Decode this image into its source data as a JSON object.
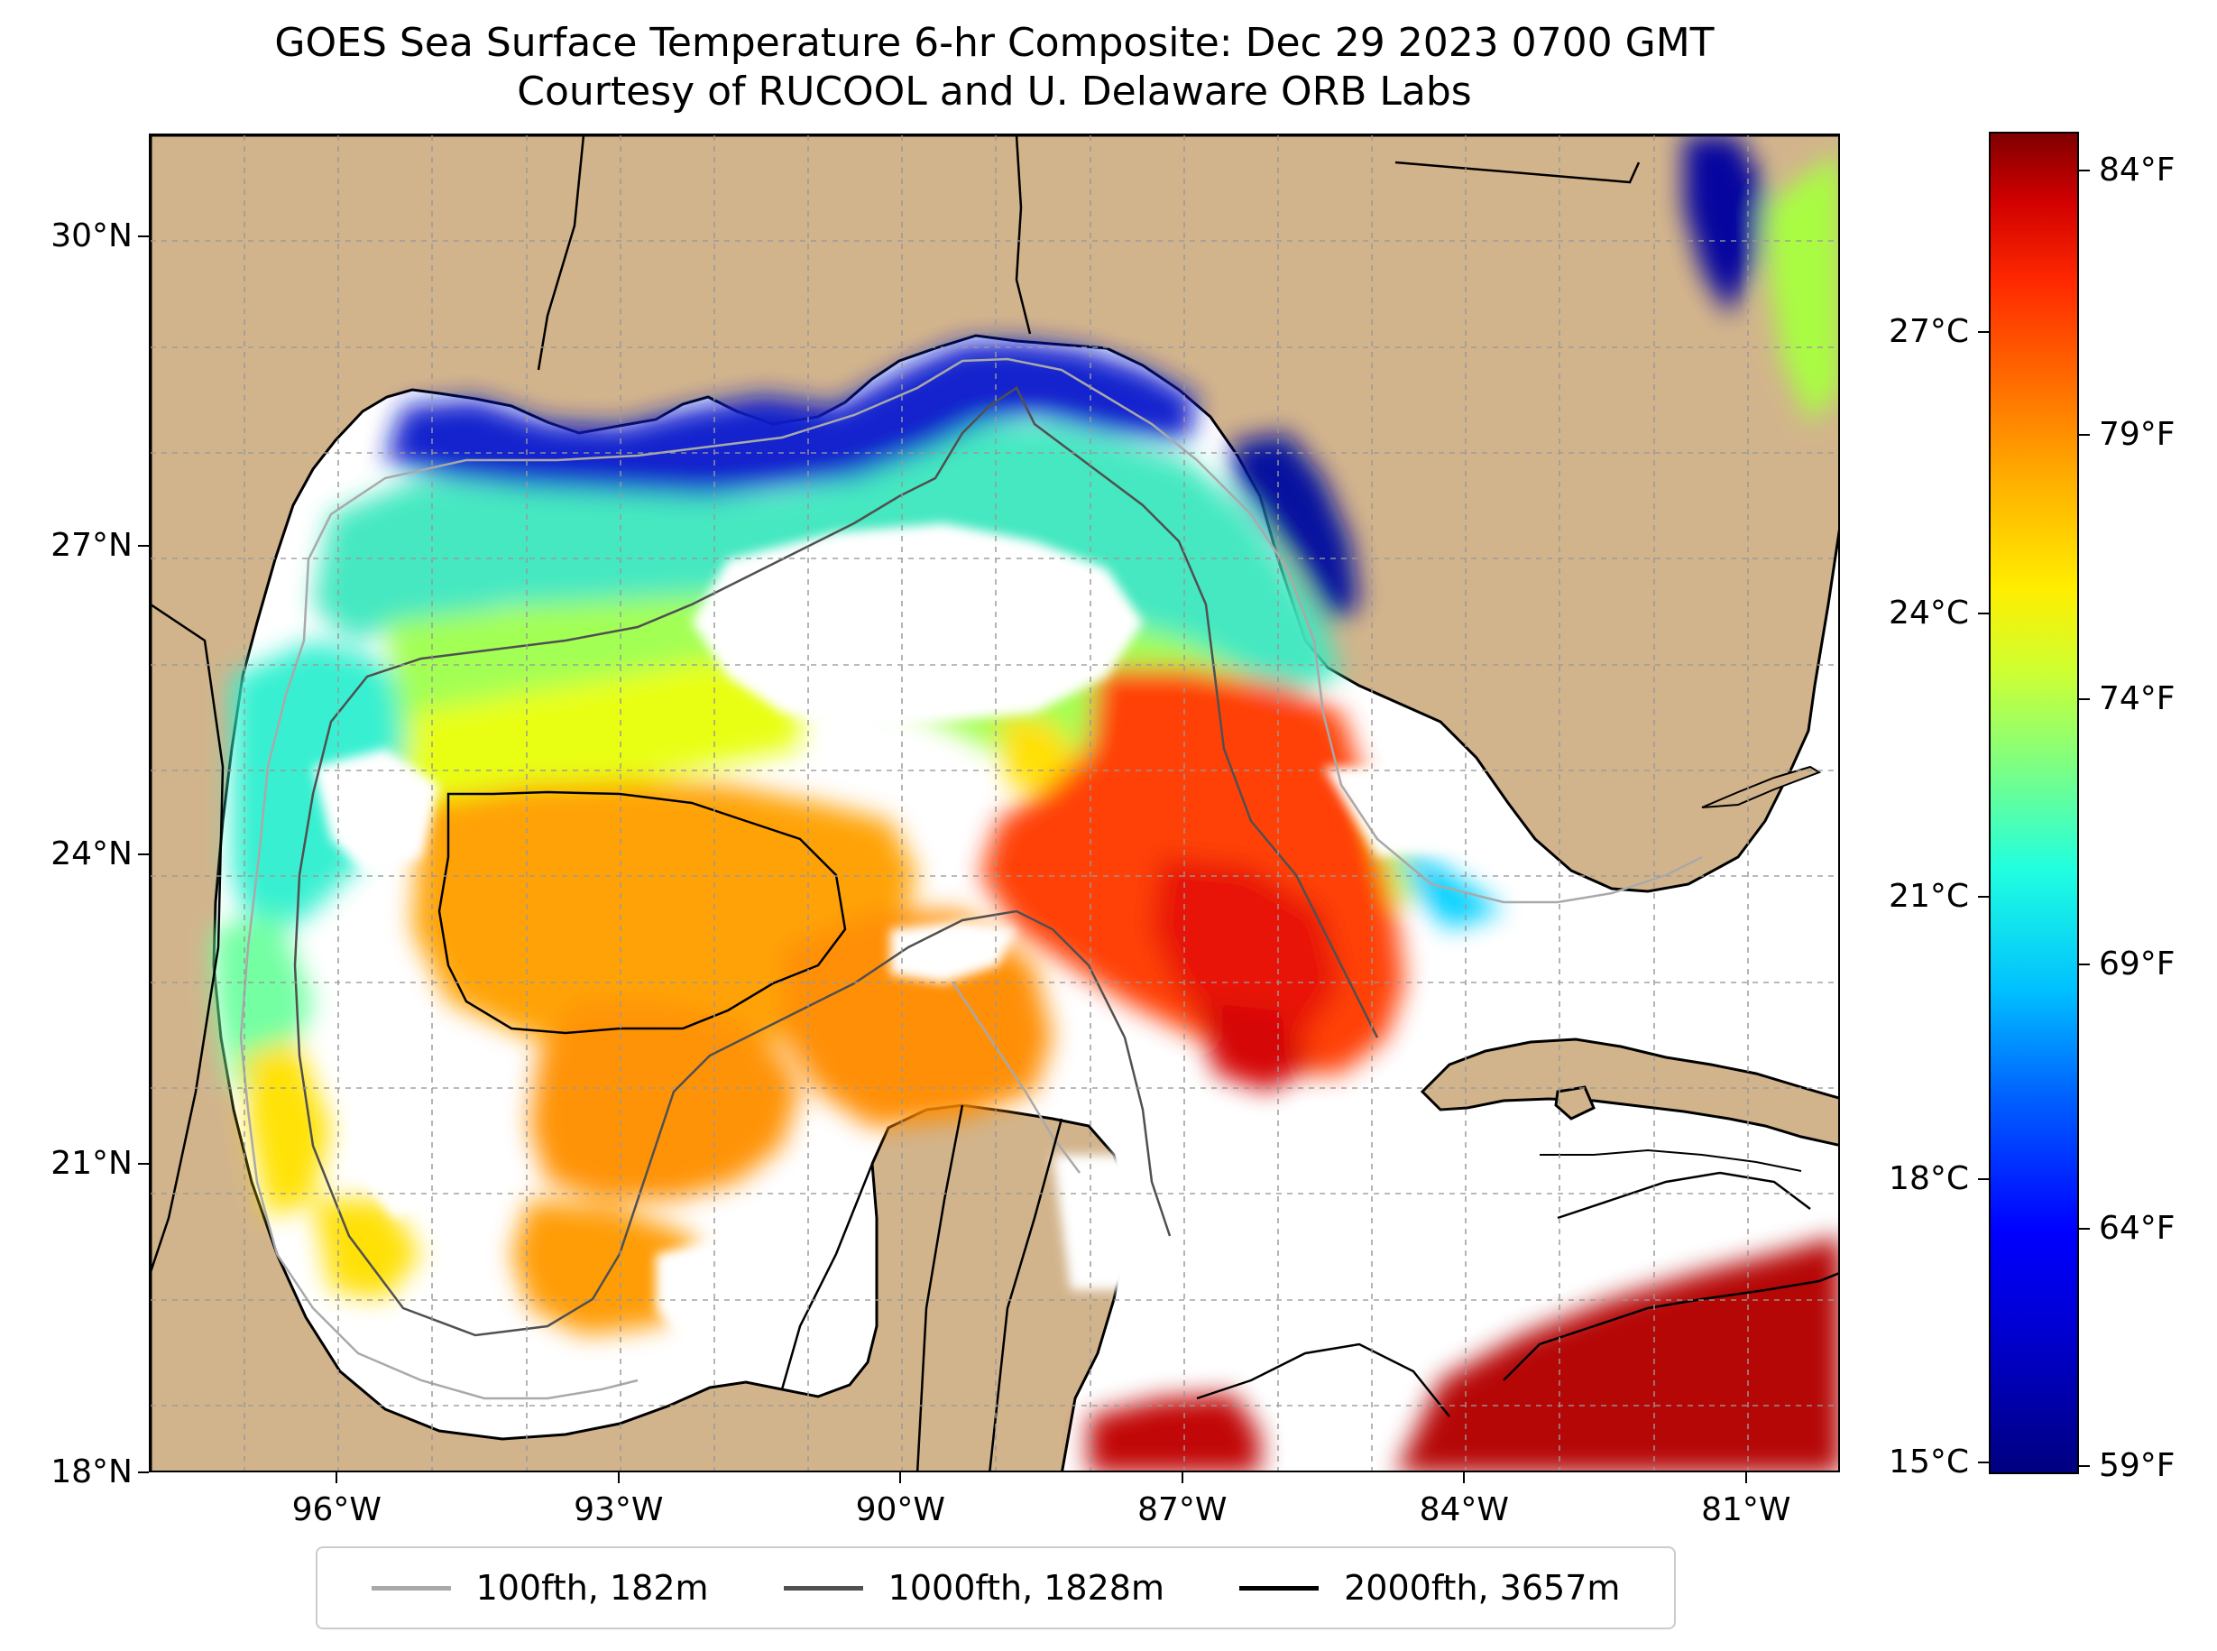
{
  "title": {
    "line1": "GOES Sea Surface Temperature 6-hr Composite: Dec 29 2023 0700 GMT",
    "line2": "Courtesy of RUCOOL and U. Delaware ORB Labs"
  },
  "map": {
    "lat_range": [
      18,
      31
    ],
    "lon_range": [
      -98,
      -80
    ],
    "lat_ticks": [
      {
        "value": 30,
        "label": "30°N"
      },
      {
        "value": 27,
        "label": "27°N"
      },
      {
        "value": 24,
        "label": "24°N"
      },
      {
        "value": 21,
        "label": "21°N"
      },
      {
        "value": 18,
        "label": "18°N"
      }
    ],
    "lon_ticks": [
      {
        "value": -96,
        "label": "96°W"
      },
      {
        "value": -93,
        "label": "93°W"
      },
      {
        "value": -90,
        "label": "90°W"
      },
      {
        "value": -87,
        "label": "87°W"
      },
      {
        "value": -84,
        "label": "84°W"
      },
      {
        "value": -81,
        "label": "81°W"
      }
    ],
    "grid": true,
    "land_color": "#d2b48c",
    "no_data_color": "#ffffff"
  },
  "legend": {
    "placement": "bottom-center",
    "items": [
      {
        "label": "100fth, 182m",
        "color": "#a9a9a9"
      },
      {
        "label": "1000fth, 1828m",
        "color": "#505050"
      },
      {
        "label": "2000fth, 3657m",
        "color": "#000000"
      }
    ]
  },
  "colorbar": {
    "colormap": "jet",
    "celsius_ticks": [
      "27°C",
      "24°C",
      "21°C",
      "18°C",
      "15°C"
    ],
    "fahrenheit_ticks": [
      "84°F",
      "79°F",
      "74°F",
      "69°F",
      "64°F",
      "59°F"
    ]
  }
}
